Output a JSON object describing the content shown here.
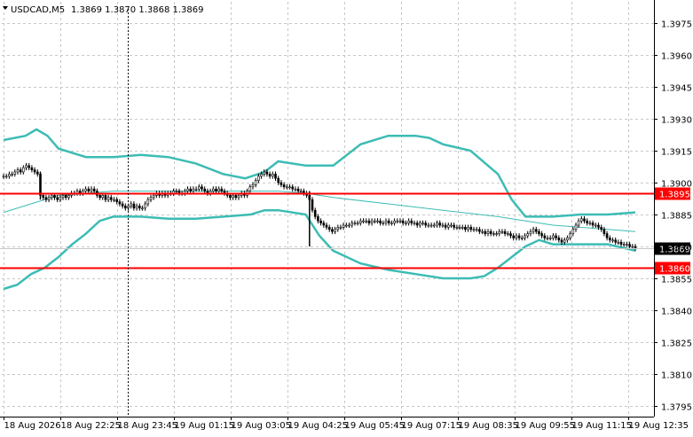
{
  "symbol_header": {
    "symbol": "USDCAD,M5",
    "quote": "1.3869 1.3870 1.3868 1.3869",
    "menu_arrow": "triangle-down-icon"
  },
  "colors": {
    "background": "#ffffff",
    "grid": "#c8c8c8",
    "candle": "#000000",
    "bands": "#3cbcb4",
    "moving_average": "#3cbcb4",
    "level_line": "#ff0000",
    "level_label_bg": "#ff0000",
    "price_label_bg": "#000000",
    "price_label_text": "#ffffff"
  },
  "chart_data": {
    "type": "candlestick",
    "symbol": "USDCAD",
    "timeframe": "M5",
    "ylim": [
      1.379,
      1.3985
    ],
    "y_ticks": [
      "1.3975",
      "1.3960",
      "1.3945",
      "1.3930",
      "1.3915",
      "1.3900",
      "1.3885",
      "1.3870",
      "1.3855",
      "1.3840",
      "1.3825",
      "1.3810",
      "1.3795"
    ],
    "x_ticks": [
      "18 Aug 2026",
      "18 Aug 22:25",
      "18 Aug 23:45",
      "19 Aug 01:15",
      "19 Aug 03:05",
      "19 Aug 04:25",
      "19 Aug 05:45",
      "19 Aug 07:15",
      "19 Aug 08:35",
      "19 Aug 09:55",
      "19 Aug 11:15",
      "19 Aug 12:35"
    ],
    "current_price": "1.3869",
    "horizontal_levels": [
      {
        "value": 1.3895,
        "label": "1.3895"
      },
      {
        "value": 1.386,
        "label": "1.3860"
      }
    ],
    "vertical_marker_at_tick": "18 Aug 23:45",
    "grid": true,
    "indicators": [
      {
        "name": "upper-band",
        "x": [
          0,
          8,
          12,
          16,
          20,
          25,
          30,
          40,
          50,
          60,
          70,
          80,
          88,
          95,
          100,
          110,
          120,
          130,
          140,
          150,
          155,
          160,
          170,
          180,
          185,
          190,
          200,
          210,
          220,
          230
        ],
        "y": [
          1.392,
          1.3922,
          1.3925,
          1.3922,
          1.3916,
          1.3914,
          1.3912,
          1.3912,
          1.3913,
          1.3912,
          1.3909,
          1.3904,
          1.3902,
          1.3905,
          1.391,
          1.3908,
          1.3908,
          1.3918,
          1.3922,
          1.3922,
          1.3921,
          1.3918,
          1.3915,
          1.3904,
          1.3892,
          1.3884,
          1.3884,
          1.3885,
          1.3885,
          1.3886
        ]
      },
      {
        "name": "middle-line",
        "x": [
          0,
          20,
          40,
          60,
          80,
          100,
          110,
          120,
          140,
          160,
          180,
          200,
          220,
          230
        ],
        "y": [
          1.3886,
          1.3894,
          1.3896,
          1.3896,
          1.3896,
          1.3896,
          1.3895,
          1.3893,
          1.389,
          1.3887,
          1.3884,
          1.388,
          1.3878,
          1.3877
        ]
      },
      {
        "name": "lower-band",
        "x": [
          0,
          5,
          10,
          15,
          20,
          25,
          30,
          35,
          40,
          50,
          60,
          70,
          80,
          90,
          95,
          100,
          110,
          115,
          120,
          130,
          140,
          150,
          160,
          170,
          175,
          180,
          185,
          190,
          195,
          200,
          210,
          220,
          230
        ],
        "y": [
          1.385,
          1.3852,
          1.3857,
          1.386,
          1.3865,
          1.3871,
          1.3876,
          1.3882,
          1.3884,
          1.3884,
          1.3883,
          1.3883,
          1.3884,
          1.3885,
          1.3887,
          1.3887,
          1.3885,
          1.3875,
          1.3868,
          1.3862,
          1.3859,
          1.3857,
          1.3855,
          1.3855,
          1.3856,
          1.386,
          1.3865,
          1.387,
          1.3873,
          1.3871,
          1.3871,
          1.3871,
          1.3868
        ]
      }
    ],
    "closes": [
      1.3903,
      1.3903,
      1.3904,
      1.3904,
      1.3905,
      1.3906,
      1.3905,
      1.3907,
      1.3908,
      1.3907,
      1.3906,
      1.3905,
      1.3904,
      1.3894,
      1.3893,
      1.3892,
      1.3893,
      1.3894,
      1.3893,
      1.3892,
      1.3893,
      1.3894,
      1.3893,
      1.3894,
      1.3895,
      1.3895,
      1.3896,
      1.3895,
      1.3896,
      1.3897,
      1.3896,
      1.3897,
      1.3896,
      1.3894,
      1.3893,
      1.3894,
      1.3892,
      1.3893,
      1.3892,
      1.3892,
      1.3891,
      1.389,
      1.3889,
      1.3888,
      1.3889,
      1.389,
      1.3888,
      1.3889,
      1.3888,
      1.3888,
      1.389,
      1.3892,
      1.3893,
      1.3894,
      1.3895,
      1.3894,
      1.3895,
      1.3894,
      1.3895,
      1.3895,
      1.3896,
      1.3896,
      1.3895,
      1.3895,
      1.3896,
      1.3897,
      1.3896,
      1.3897,
      1.3897,
      1.3898,
      1.3897,
      1.3896,
      1.3895,
      1.3896,
      1.3897,
      1.3896,
      1.3897,
      1.3896,
      1.3895,
      1.3894,
      1.3893,
      1.3894,
      1.3893,
      1.3894,
      1.3895,
      1.3894,
      1.3896,
      1.3898,
      1.3899,
      1.3901,
      1.3903,
      1.3904,
      1.3905,
      1.3904,
      1.3903,
      1.3904,
      1.3902,
      1.39,
      1.3899,
      1.3898,
      1.3898,
      1.3898,
      1.3897,
      1.3897,
      1.3896,
      1.3896,
      1.3895,
      1.3894,
      1.3892,
      1.3887,
      1.3884,
      1.3882,
      1.3881,
      1.388,
      1.3879,
      1.3878,
      1.3877,
      1.3878,
      1.3879,
      1.3879,
      1.388,
      1.388,
      1.388,
      1.3881,
      1.3881,
      1.3881,
      1.3882,
      1.3882,
      1.3882,
      1.3881,
      1.3882,
      1.3882,
      1.3882,
      1.3881,
      1.3881,
      1.3882,
      1.3881,
      1.3881,
      1.3882,
      1.3882,
      1.3882,
      1.3881,
      1.3881,
      1.3882,
      1.3881,
      1.3881,
      1.388,
      1.3881,
      1.3881,
      1.388,
      1.388,
      1.388,
      1.388,
      1.3881,
      1.388,
      1.388,
      1.3879,
      1.388,
      1.388,
      1.3879,
      1.3879,
      1.3879,
      1.3879,
      1.3878,
      1.3879,
      1.3878,
      1.3878,
      1.3878,
      1.3877,
      1.3877,
      1.3876,
      1.3877,
      1.3876,
      1.3876,
      1.3876,
      1.3877,
      1.3877,
      1.3876,
      1.3876,
      1.3875,
      1.3874,
      1.3875,
      1.3874,
      1.3874,
      1.3875,
      1.3876,
      1.3877,
      1.3878,
      1.3877,
      1.3876,
      1.3875,
      1.3874,
      1.3874,
      1.3874,
      1.3875,
      1.3874,
      1.3873,
      1.3872,
      1.3873,
      1.3874,
      1.3876,
      1.3878,
      1.388,
      1.3882,
      1.3883,
      1.3882,
      1.3881,
      1.3881,
      1.388,
      1.388,
      1.3879,
      1.3878,
      1.3876,
      1.3874,
      1.3873,
      1.3873,
      1.3872,
      1.3872,
      1.3871,
      1.3871,
      1.3871,
      1.387,
      1.387,
      1.3869
    ]
  }
}
